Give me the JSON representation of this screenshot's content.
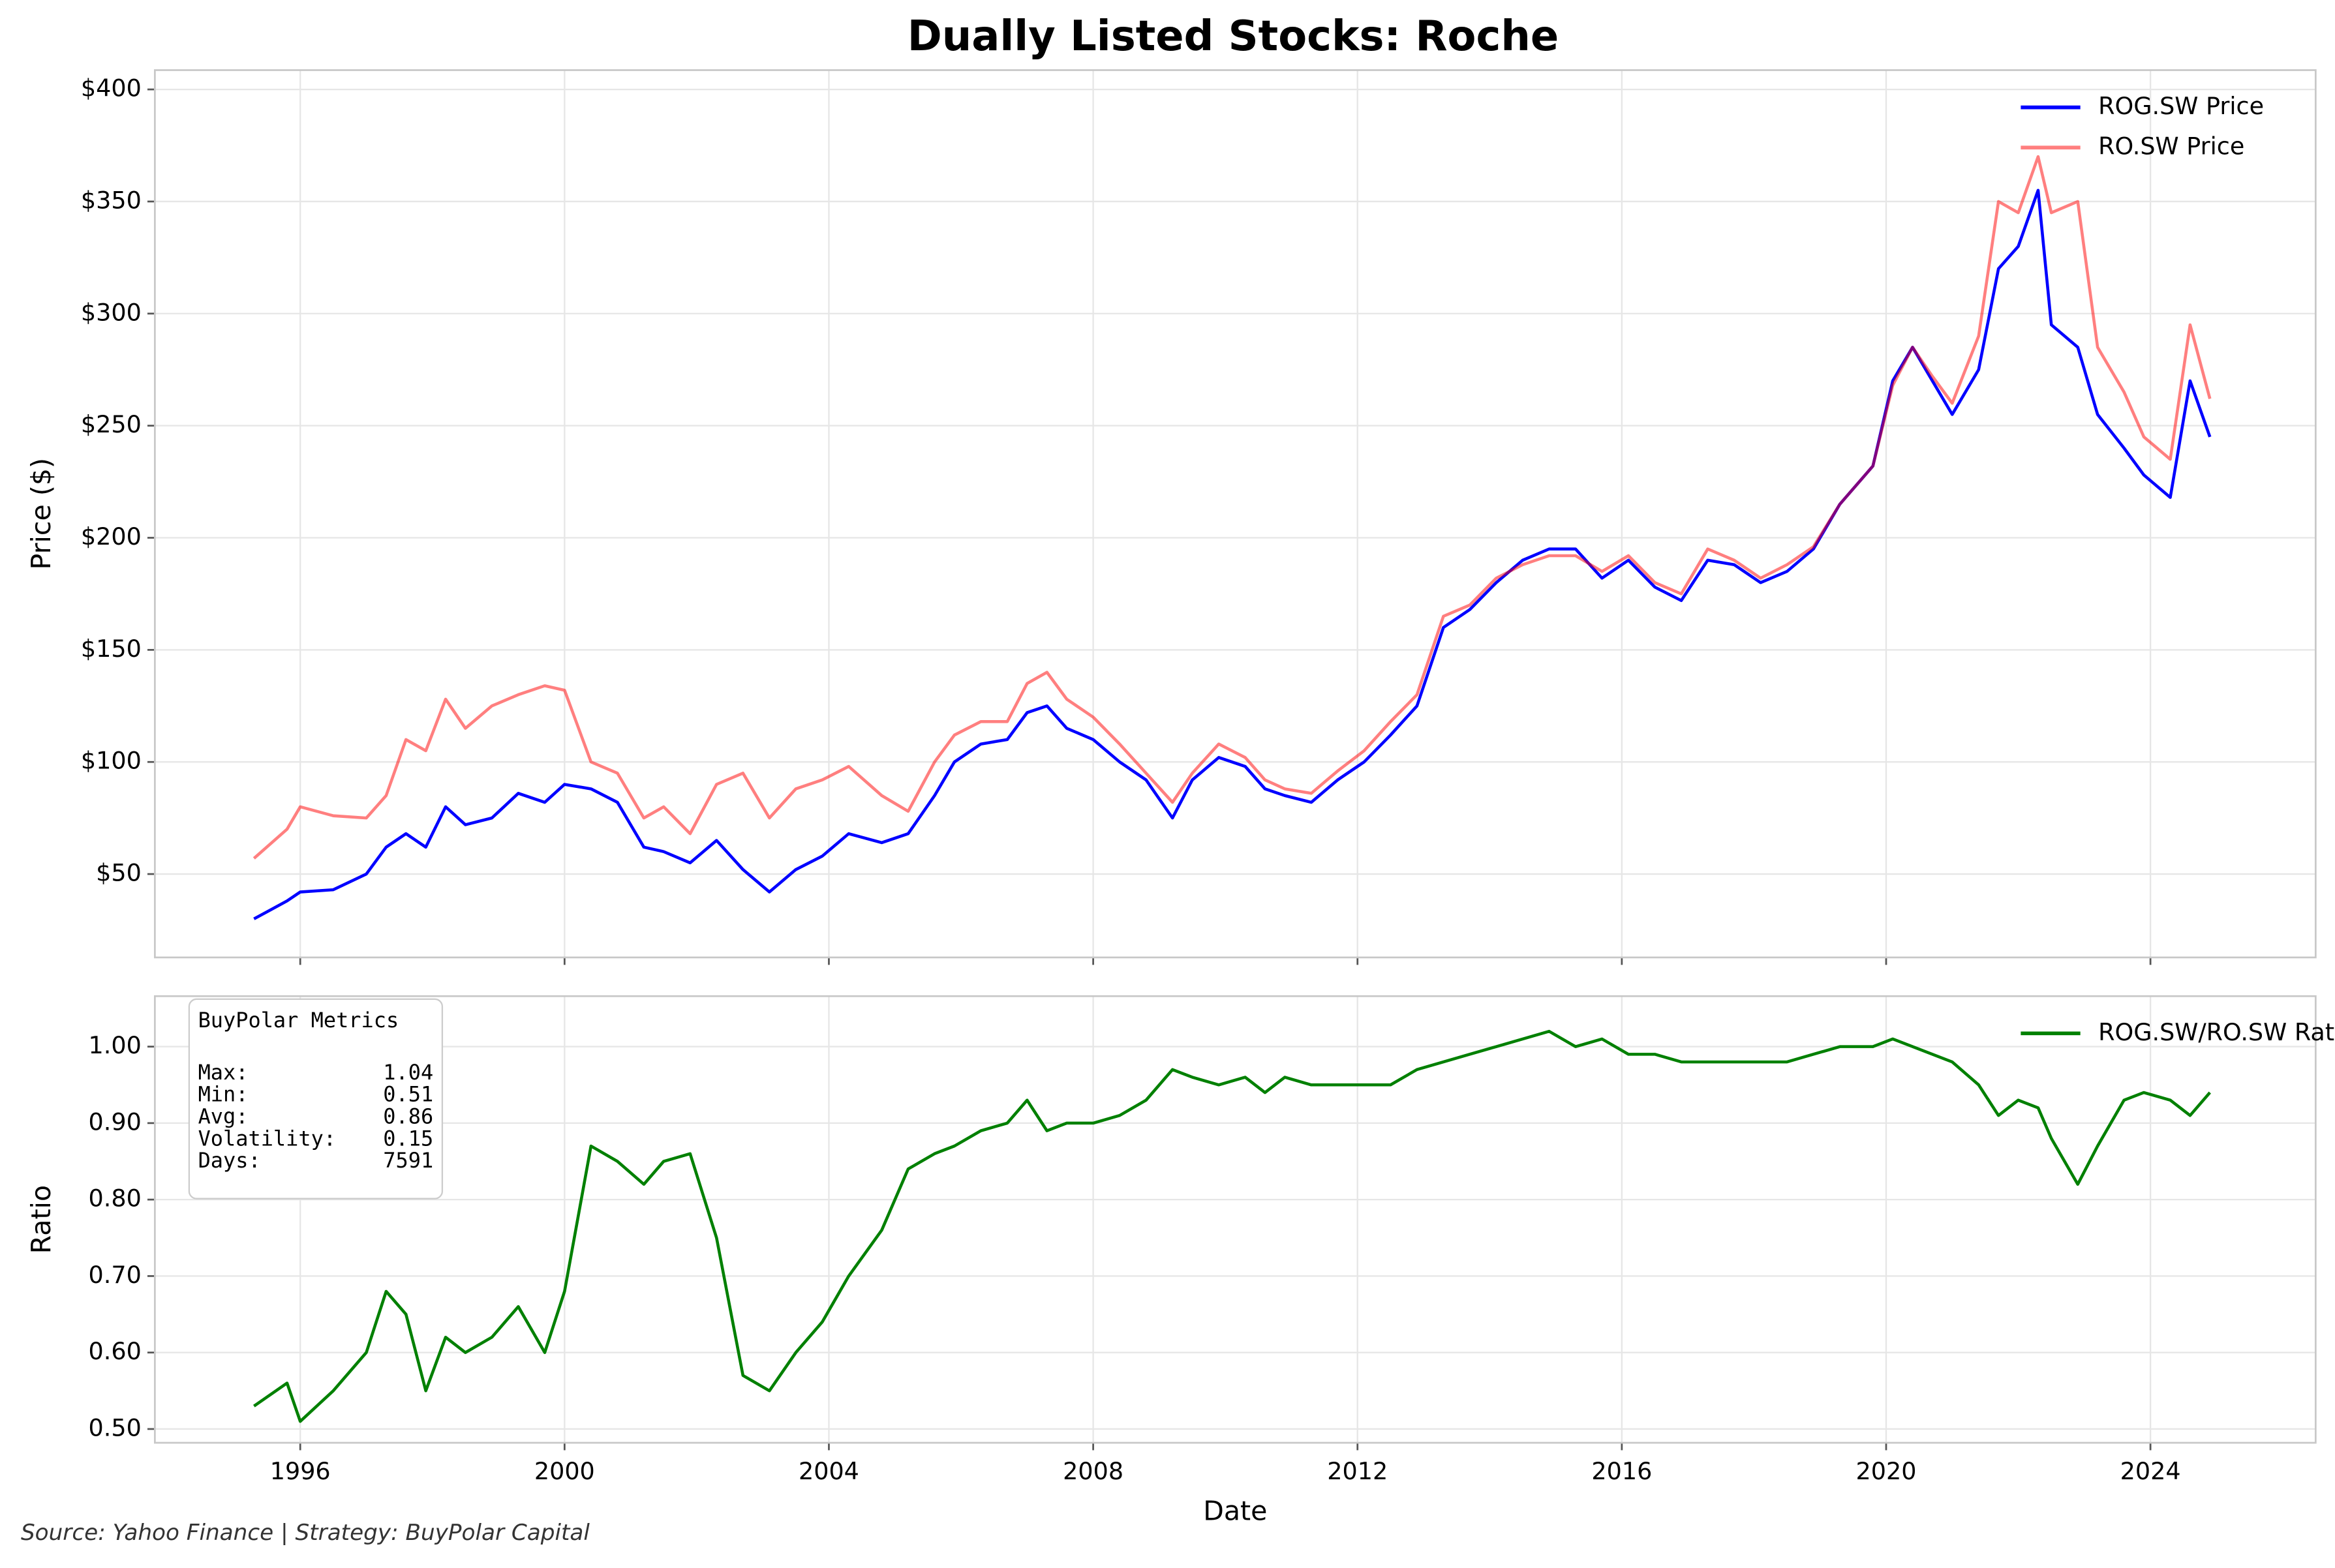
{
  "chart_data": [
    {
      "type": "line",
      "title": "Dually Listed Stocks: Roche",
      "ylabel": "Price ($)",
      "x": [
        1995.3,
        1995.8,
        1996.0,
        1996.5,
        1997.0,
        1997.3,
        1997.6,
        1997.9,
        1998.2,
        1998.5,
        1998.9,
        1999.3,
        1999.7,
        2000.0,
        2000.4,
        2000.8,
        2001.2,
        2001.5,
        2001.9,
        2002.3,
        2002.7,
        2003.1,
        2003.5,
        2003.9,
        2004.3,
        2004.8,
        2005.2,
        2005.6,
        2005.9,
        2006.3,
        2006.7,
        2007.0,
        2007.3,
        2007.6,
        2008.0,
        2008.4,
        2008.8,
        2009.2,
        2009.5,
        2009.9,
        2010.3,
        2010.6,
        2010.9,
        2011.3,
        2011.7,
        2012.1,
        2012.5,
        2012.9,
        2013.3,
        2013.7,
        2014.1,
        2014.5,
        2014.9,
        2015.3,
        2015.7,
        2016.1,
        2016.5,
        2016.9,
        2017.3,
        2017.7,
        2018.1,
        2018.5,
        2018.9,
        2019.3,
        2019.8,
        2020.1,
        2020.4,
        2020.7,
        2021.0,
        2021.4,
        2021.7,
        2022.0,
        2022.3,
        2022.5,
        2022.9,
        2023.2,
        2023.6,
        2023.9,
        2024.3,
        2024.6,
        2024.9
      ],
      "series": [
        {
          "name": "ROG.SW Price",
          "color": "#0000ff",
          "alpha": 1,
          "values": [
            30,
            38,
            42,
            43,
            50,
            62,
            68,
            62,
            80,
            72,
            75,
            86,
            82,
            90,
            88,
            82,
            62,
            60,
            55,
            65,
            52,
            42,
            52,
            58,
            68,
            64,
            68,
            85,
            100,
            108,
            110,
            122,
            125,
            115,
            110,
            100,
            92,
            75,
            92,
            102,
            98,
            88,
            85,
            82,
            92,
            100,
            112,
            125,
            160,
            168,
            180,
            190,
            195,
            195,
            182,
            190,
            178,
            172,
            190,
            188,
            180,
            185,
            195,
            215,
            232,
            270,
            285,
            270,
            255,
            275,
            320,
            330,
            355,
            295,
            285,
            255,
            240,
            228,
            218,
            270,
            245
          ]
        },
        {
          "name": "RO.SW Price",
          "color": "#ff0000",
          "alpha": 0.5,
          "values": [
            57,
            70,
            80,
            76,
            75,
            85,
            110,
            105,
            128,
            115,
            125,
            130,
            134,
            132,
            100,
            95,
            75,
            80,
            68,
            90,
            95,
            75,
            88,
            92,
            98,
            85,
            78,
            100,
            112,
            118,
            118,
            135,
            140,
            128,
            120,
            108,
            95,
            82,
            95,
            108,
            102,
            92,
            88,
            86,
            96,
            105,
            118,
            130,
            165,
            170,
            182,
            188,
            192,
            192,
            185,
            192,
            180,
            175,
            195,
            190,
            182,
            188,
            196,
            215,
            232,
            268,
            285,
            272,
            260,
            290,
            350,
            345,
            370,
            345,
            350,
            285,
            265,
            245,
            235,
            295,
            262
          ]
        }
      ],
      "xlim": [
        1993.8,
        2026.5
      ],
      "xticks": [
        1996,
        2000,
        2004,
        2008,
        2012,
        2016,
        2020,
        2024
      ],
      "show_xtick_labels": false,
      "ylim": [
        12.8,
        408.6
      ],
      "yticks": [
        {
          "value": 50,
          "label": "$50"
        },
        {
          "value": 100,
          "label": "$100"
        },
        {
          "value": 150,
          "label": "$150"
        },
        {
          "value": 200,
          "label": "$200"
        },
        {
          "value": 250,
          "label": "$250"
        },
        {
          "value": 300,
          "label": "$300"
        },
        {
          "value": 350,
          "label": "$350"
        },
        {
          "value": 400,
          "label": "$400"
        }
      ],
      "grid": true,
      "legend": "upper right"
    },
    {
      "type": "line",
      "xlabel": "Date",
      "ylabel": "Ratio",
      "x": [
        1995.3,
        1995.8,
        1996.0,
        1996.5,
        1997.0,
        1997.3,
        1997.6,
        1997.9,
        1998.2,
        1998.5,
        1998.9,
        1999.3,
        1999.7,
        2000.0,
        2000.4,
        2000.8,
        2001.2,
        2001.5,
        2001.9,
        2002.3,
        2002.7,
        2003.1,
        2003.5,
        2003.9,
        2004.3,
        2004.8,
        2005.2,
        2005.6,
        2005.9,
        2006.3,
        2006.7,
        2007.0,
        2007.3,
        2007.6,
        2008.0,
        2008.4,
        2008.8,
        2009.2,
        2009.5,
        2009.9,
        2010.3,
        2010.6,
        2010.9,
        2011.3,
        2011.7,
        2012.1,
        2012.5,
        2012.9,
        2013.3,
        2013.7,
        2014.1,
        2014.5,
        2014.9,
        2015.3,
        2015.7,
        2016.1,
        2016.5,
        2016.9,
        2017.3,
        2017.7,
        2018.1,
        2018.5,
        2018.9,
        2019.3,
        2019.8,
        2020.1,
        2020.4,
        2020.7,
        2021.0,
        2021.4,
        2021.7,
        2022.0,
        2022.3,
        2022.5,
        2022.9,
        2023.2,
        2023.6,
        2023.9,
        2024.3,
        2024.6,
        2024.9
      ],
      "series": [
        {
          "name": "ROG.SW/RO.SW Ratio",
          "color": "#008000",
          "alpha": 1,
          "values": [
            0.53,
            0.56,
            0.51,
            0.55,
            0.6,
            0.68,
            0.65,
            0.55,
            0.62,
            0.6,
            0.62,
            0.66,
            0.6,
            0.68,
            0.87,
            0.85,
            0.82,
            0.85,
            0.86,
            0.75,
            0.57,
            0.55,
            0.6,
            0.64,
            0.7,
            0.76,
            0.84,
            0.86,
            0.87,
            0.89,
            0.9,
            0.93,
            0.89,
            0.9,
            0.9,
            0.91,
            0.93,
            0.97,
            0.96,
            0.95,
            0.96,
            0.94,
            0.96,
            0.95,
            0.95,
            0.95,
            0.95,
            0.97,
            0.98,
            0.99,
            1.0,
            1.01,
            1.02,
            1.0,
            1.01,
            0.99,
            0.99,
            0.98,
            0.98,
            0.98,
            0.98,
            0.98,
            0.99,
            1.0,
            1.0,
            1.01,
            1.0,
            0.99,
            0.98,
            0.95,
            0.91,
            0.93,
            0.92,
            0.88,
            0.82,
            0.87,
            0.93,
            0.94,
            0.93,
            0.91,
            0.94
          ]
        }
      ],
      "xlim": [
        1993.8,
        2026.5
      ],
      "xticks": [
        1996,
        2000,
        2004,
        2008,
        2012,
        2016,
        2020,
        2024
      ],
      "show_xtick_labels": true,
      "ylim": [
        0.482,
        1.066
      ],
      "yticks": [
        {
          "value": 0.5,
          "label": "0.50"
        },
        {
          "value": 0.6,
          "label": "0.60"
        },
        {
          "value": 0.7,
          "label": "0.70"
        },
        {
          "value": 0.8,
          "label": "0.80"
        },
        {
          "value": 0.9,
          "label": "0.90"
        },
        {
          "value": 1.0,
          "label": "1.00"
        }
      ],
      "grid": true,
      "legend": "upper right",
      "metrics_box": {
        "title": "BuyPolar Metrics",
        "rows": [
          {
            "label": "Max:",
            "value": 1.04
          },
          {
            "label": "Min:",
            "value": 0.51
          },
          {
            "label": "Avg:",
            "value": 0.86
          },
          {
            "label": "Volatility:",
            "value": 0.15
          },
          {
            "label": "Days:",
            "value": 7591
          }
        ]
      }
    }
  ],
  "footer": "Source: Yahoo Finance | Strategy: BuyPolar Capital"
}
